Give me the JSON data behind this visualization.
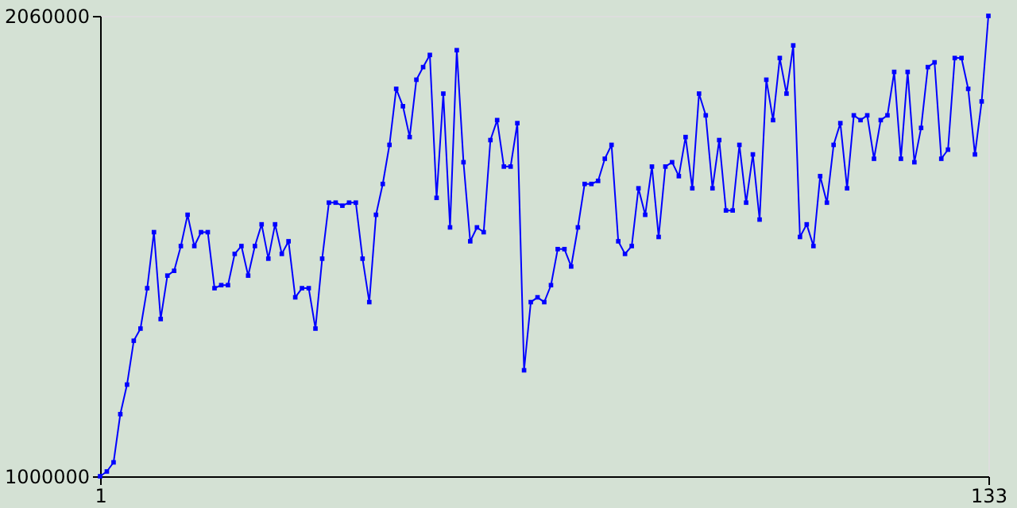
{
  "chart_data": {
    "type": "line",
    "x": [
      1,
      2,
      3,
      4,
      5,
      6,
      7,
      8,
      9,
      10,
      11,
      12,
      13,
      14,
      15,
      16,
      17,
      18,
      19,
      20,
      21,
      22,
      23,
      24,
      25,
      26,
      27,
      28,
      29,
      30,
      31,
      32,
      33,
      34,
      35,
      36,
      37,
      38,
      39,
      40,
      41,
      42,
      43,
      44,
      45,
      46,
      47,
      48,
      49,
      50,
      51,
      52,
      53,
      54,
      55,
      56,
      57,
      58,
      59,
      60,
      61,
      62,
      63,
      64,
      65,
      66,
      67,
      68,
      69,
      70,
      71,
      72,
      73,
      74,
      75,
      76,
      77,
      78,
      79,
      80,
      81,
      82,
      83,
      84,
      85,
      86,
      87,
      88,
      89,
      90,
      91,
      92,
      93,
      94,
      95,
      96,
      97,
      98,
      99,
      100,
      101,
      102,
      103,
      104,
      105,
      106,
      107,
      108,
      109,
      110,
      111,
      112,
      113,
      114,
      115,
      116,
      117,
      118,
      119,
      120,
      121,
      122,
      123,
      124,
      125,
      126,
      127,
      128,
      129,
      130,
      131,
      132,
      133
    ],
    "series": [
      {
        "color": "#0000ff",
        "values": [
          1000000,
          1011000,
          1032000,
          1143000,
          1211000,
          1312000,
          1340000,
          1433000,
          1562000,
          1362000,
          1462000,
          1473000,
          1530000,
          1602000,
          1530000,
          1562000,
          1562000,
          1433000,
          1440000,
          1440000,
          1512000,
          1530000,
          1462000,
          1530000,
          1580000,
          1501000,
          1580000,
          1512000,
          1541000,
          1412000,
          1433000,
          1433000,
          1340000,
          1501000,
          1630000,
          1630000,
          1623000,
          1630000,
          1630000,
          1501000,
          1401000,
          1602000,
          1673000,
          1763000,
          1892000,
          1852000,
          1781000,
          1913000,
          1942000,
          1970000,
          1641000,
          1881000,
          1573000,
          1981000,
          1723000,
          1541000,
          1573000,
          1562000,
          1774000,
          1820000,
          1713000,
          1713000,
          1813000,
          1244000,
          1401000,
          1412000,
          1401000,
          1440000,
          1523000,
          1523000,
          1483000,
          1573000,
          1673000,
          1673000,
          1680000,
          1731000,
          1763000,
          1541000,
          1512000,
          1530000,
          1663000,
          1602000,
          1713000,
          1551000,
          1713000,
          1723000,
          1691000,
          1781000,
          1663000,
          1881000,
          1831000,
          1663000,
          1774000,
          1612000,
          1612000,
          1763000,
          1630000,
          1741000,
          1591000,
          1913000,
          1820000,
          1963000,
          1881000,
          1992000,
          1551000,
          1580000,
          1530000,
          1691000,
          1630000,
          1763000,
          1813000,
          1663000,
          1831000,
          1820000,
          1831000,
          1731000,
          1820000,
          1831000,
          1931000,
          1731000,
          1931000,
          1723000,
          1802000,
          1942000,
          1953000,
          1731000,
          1752000,
          1963000,
          1963000,
          1892000,
          1741000,
          1863000,
          2060000
        ]
      }
    ],
    "xlim": [
      1,
      133
    ],
    "xticks": [
      1,
      133
    ],
    "ylim": [
      1000000,
      2060000
    ],
    "yticks": [
      1000000,
      2060000
    ],
    "marker": "square",
    "line_style": "solid"
  }
}
